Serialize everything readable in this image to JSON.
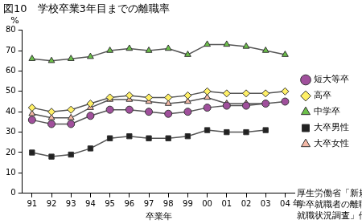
{
  "chart_data": {
    "type": "line",
    "title": "図10　学校卒業3年目までの離職率",
    "x_label": "卒業年",
    "x_unit": "年",
    "y_label": "%",
    "source": [
      "厚生労働省「新規",
      "学卒就職者の離職",
      "就職状況調査」他"
    ],
    "categories": [
      "91",
      "92",
      "93",
      "94",
      "95",
      "96",
      "97",
      "98",
      "99",
      "00",
      "01",
      "02",
      "03",
      "04"
    ],
    "series": [
      {
        "name": "短大等卒",
        "color": "#a0509c",
        "marker": "circle",
        "values": [
          36,
          34,
          34,
          38,
          41,
          41,
          40,
          39,
          40,
          42,
          43,
          43,
          44,
          45
        ]
      },
      {
        "name": "高卒",
        "color": "#fff066",
        "marker": "diamond",
        "values": [
          42,
          40,
          41,
          44,
          47,
          48,
          47,
          47,
          48,
          50,
          49,
          49,
          49,
          50
        ]
      },
      {
        "name": "中学卒",
        "color": "#6cc04a",
        "marker": "triangle",
        "values": [
          66,
          65,
          66,
          67,
          70,
          71,
          70,
          71,
          68,
          73,
          73,
          72,
          70,
          68
        ]
      },
      {
        "name": "大卒男性",
        "color": "#222222",
        "marker": "square",
        "values": [
          20,
          18,
          19,
          22,
          27,
          28,
          27,
          27,
          28,
          31,
          30,
          30,
          31,
          null
        ]
      },
      {
        "name": "大卒女性",
        "color": "#f4b8a6",
        "marker": "triangle",
        "values": [
          39,
          37,
          37,
          42,
          46,
          46,
          45,
          44,
          45,
          47,
          44,
          44,
          44,
          null
        ]
      }
    ],
    "ylim": [
      0,
      80
    ],
    "yticks": [
      0,
      10,
      20,
      30,
      40,
      50,
      60,
      70,
      80
    ],
    "grid": false,
    "legend": "right"
  }
}
